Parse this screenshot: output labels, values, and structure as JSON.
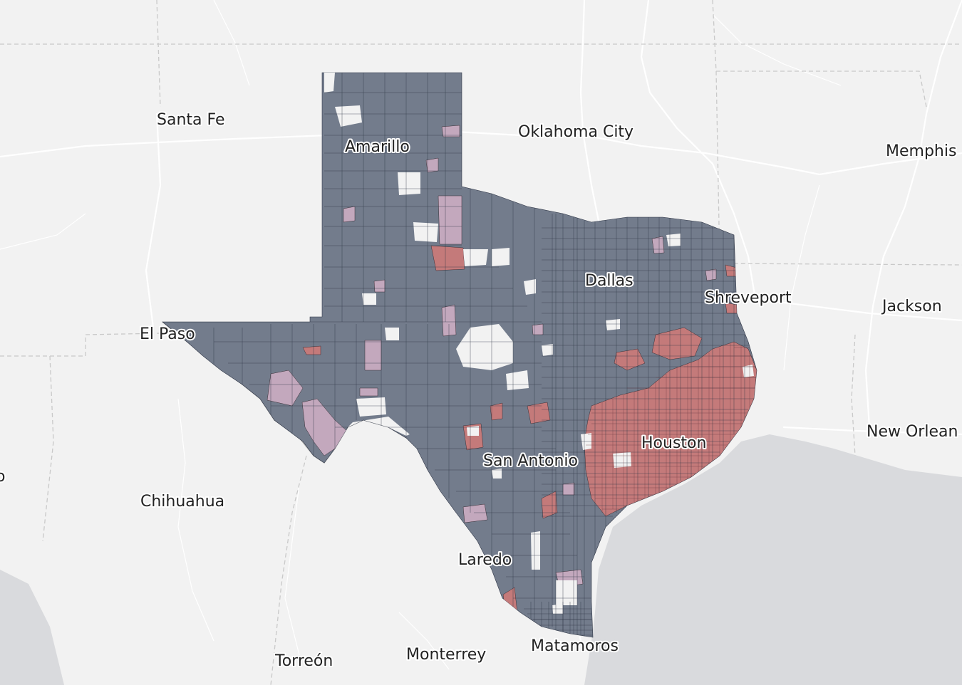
{
  "map": {
    "colors": {
      "background": "#f2f2f2",
      "water": "#d9dadd",
      "roads": "#ffffff",
      "borders": "#c9c9c9",
      "region_blue": "#737c8c",
      "region_red": "#c47a7a",
      "region_pink": "#c3a8bd",
      "region_outline": "#2f3646"
    },
    "labels": {
      "santa_fe": "Santa Fe",
      "amarillo": "Amarillo",
      "oklahoma_city": "Oklahoma City",
      "memphis": "Memphis",
      "dallas": "Dallas",
      "shreveport": "Shreveport",
      "jackson": "Jackson",
      "el_paso": "El Paso",
      "houston": "Houston",
      "san_antonio": "San Antonio",
      "new_orleans": "New Orlean",
      "chihuahua": "Chihuahua",
      "laredo": "Laredo",
      "matamoros": "Matamoros",
      "torreon": "Torreón",
      "monterrey": "Monterrey",
      "edge_fragment": "o"
    }
  }
}
